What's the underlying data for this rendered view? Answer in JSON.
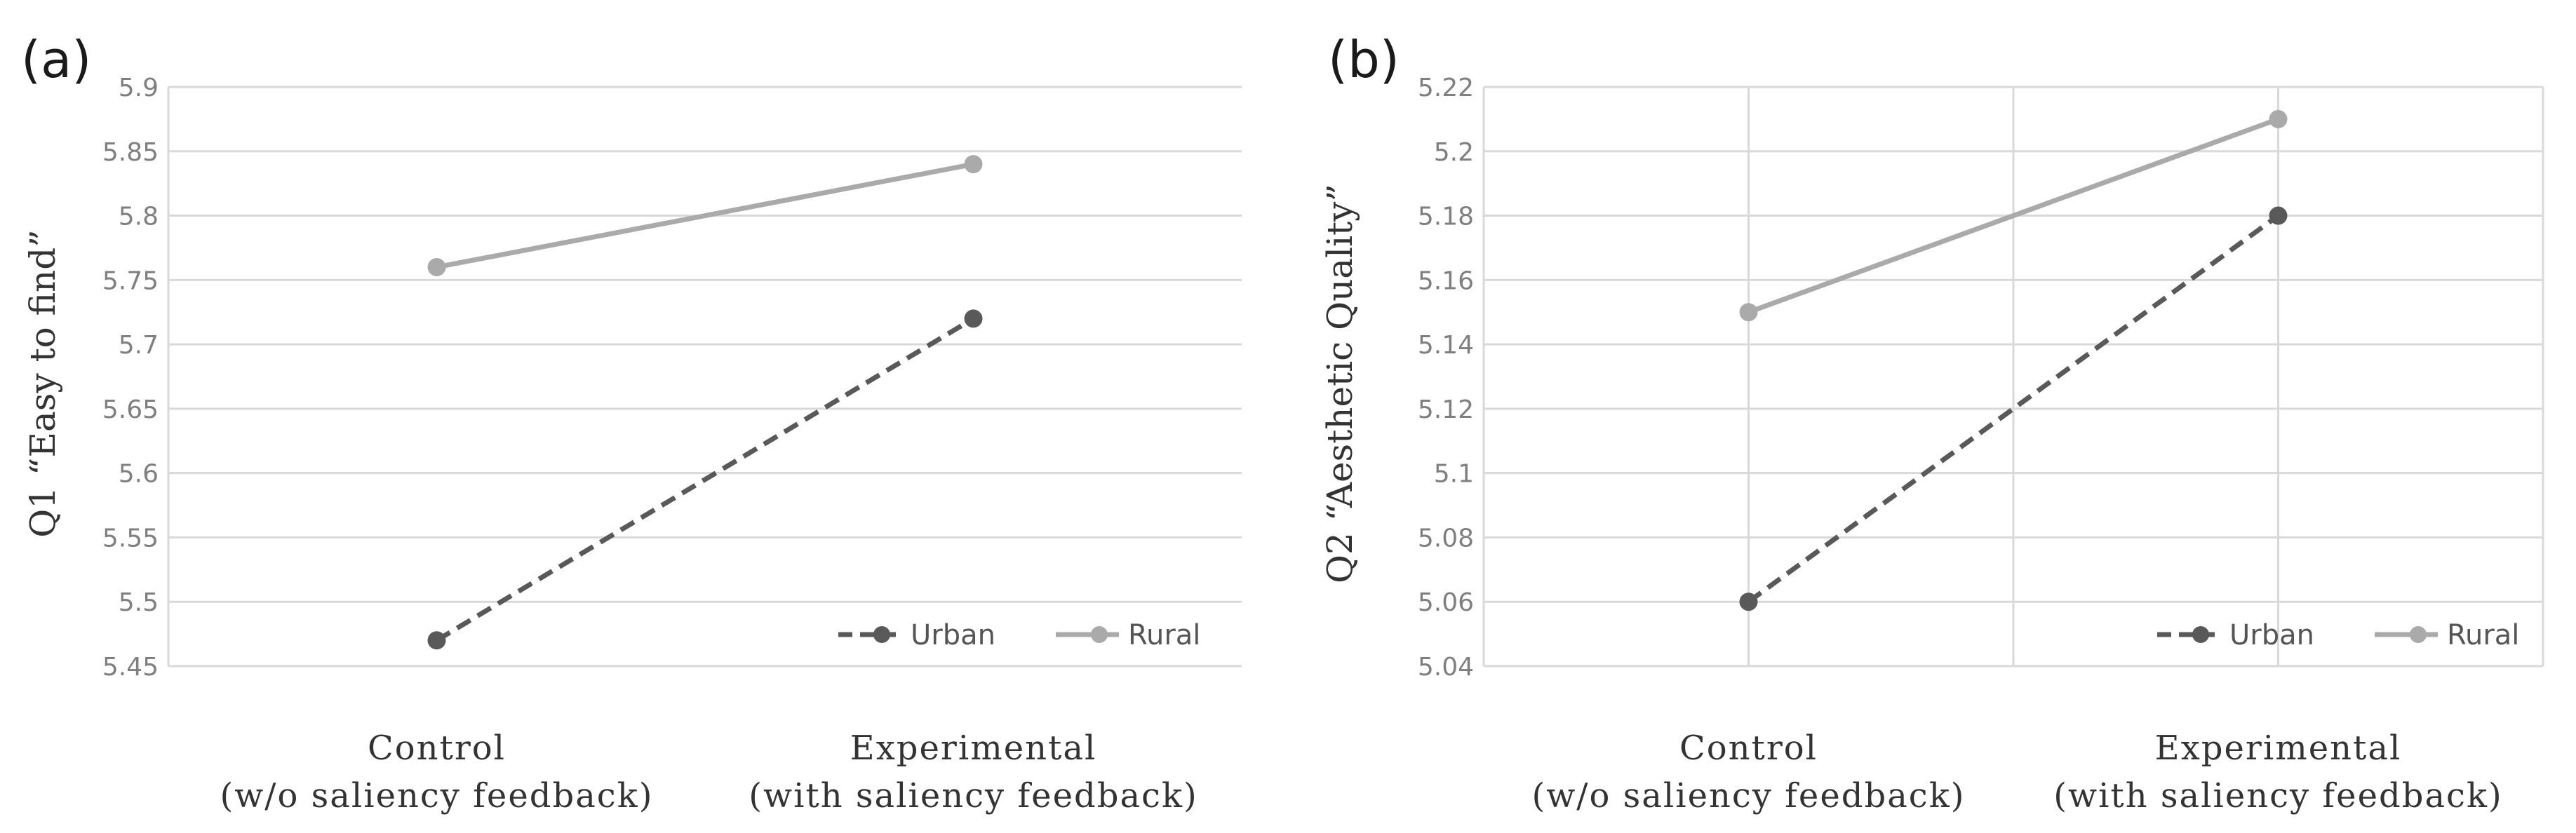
{
  "chart_data": [
    {
      "type": "line",
      "panel_label": "(a)",
      "ylabel": "Q1 “Easy to find”",
      "categories": [
        [
          "Control",
          "(w/o saliency feedback)"
        ],
        [
          "Experimental",
          "(with saliency feedback)"
        ]
      ],
      "yticks": [
        "5.45",
        "5.5",
        "5.55",
        "5.6",
        "5.65",
        "5.7",
        "5.75",
        "5.8",
        "5.85",
        "5.9"
      ],
      "ylim": [
        5.45,
        5.9
      ],
      "vertical_grid": false,
      "legend_position": "bottom-right",
      "series": [
        {
          "name": "Urban",
          "values": [
            5.47,
            5.72
          ],
          "color": "#595959",
          "dash": true
        },
        {
          "name": "Rural",
          "values": [
            5.76,
            5.84
          ],
          "color": "#aaaaaa",
          "dash": false
        }
      ]
    },
    {
      "type": "line",
      "panel_label": "(b)",
      "ylabel": "Q2 “Aesthetic Quality”",
      "categories": [
        [
          "Control",
          "(w/o saliency feedback)"
        ],
        [
          "Experimental",
          "(with saliency feedback)"
        ]
      ],
      "yticks": [
        "5.04",
        "5.06",
        "5.08",
        "5.1",
        "5.12",
        "5.14",
        "5.16",
        "5.18",
        "5.2",
        "5.22"
      ],
      "ylim": [
        5.04,
        5.22
      ],
      "vertical_grid": true,
      "legend_position": "bottom-right",
      "series": [
        {
          "name": "Urban",
          "values": [
            5.06,
            5.18
          ],
          "color": "#595959",
          "dash": true
        },
        {
          "name": "Rural",
          "values": [
            5.15,
            5.21
          ],
          "color": "#aaaaaa",
          "dash": false
        }
      ]
    }
  ]
}
